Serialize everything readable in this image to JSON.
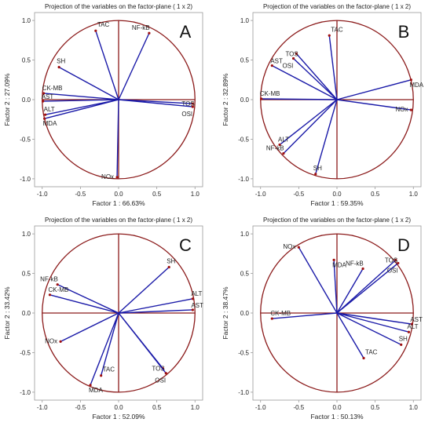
{
  "colors": {
    "circle": "#8B1A1A",
    "axes": "#8B1A1A",
    "vector": "#1a1aa8",
    "point": "#a01010",
    "frame": "#9a9a9a",
    "text": "#222222"
  },
  "chart_data": [
    {
      "type": "scatter",
      "panel_label": "A",
      "title": "Projection of the variables on the factor-plane (  1 x  2)",
      "xlabel": "Factor 1 : 66.63%",
      "ylabel": "Factor 2 : 27.09%",
      "xlim": [
        -1.1,
        1.1
      ],
      "ylim": [
        -1.1,
        1.1
      ],
      "xticks": [
        "-1.0",
        "-0.5",
        "0.0",
        "0.5",
        "1.0"
      ],
      "yticks": [
        "1.0",
        "0.5",
        "0.0",
        "-0.5",
        "-1.0"
      ],
      "points": [
        {
          "label": "TAC",
          "x": -0.3,
          "y": 0.87
        },
        {
          "label": "NF-kB",
          "x": 0.4,
          "y": 0.84
        },
        {
          "label": "SH",
          "x": -0.78,
          "y": 0.41
        },
        {
          "label": "CK-MB",
          "x": -0.98,
          "y": 0.08
        },
        {
          "label": "AST",
          "x": -0.99,
          "y": -0.02
        },
        {
          "label": "ALT",
          "x": -0.96,
          "y": -0.19
        },
        {
          "label": "MDA",
          "x": -0.97,
          "y": -0.24
        },
        {
          "label": "TOS",
          "x": 0.97,
          "y": -0.05
        },
        {
          "label": "OSI",
          "x": 0.97,
          "y": -0.09
        },
        {
          "label": "NOx",
          "x": -0.02,
          "y": -0.98
        }
      ]
    },
    {
      "type": "scatter",
      "panel_label": "B",
      "title": "Projection of the variables on the factor-plane (  1 x  2)",
      "xlabel": "Factor 1 : 59.35%",
      "ylabel": "Factor 2 : 32.89%",
      "xlim": [
        -1.1,
        1.1
      ],
      "ylim": [
        -1.1,
        1.1
      ],
      "xticks": [
        "-1.0",
        "-0.5",
        "0.0",
        "0.5",
        "1.0"
      ],
      "yticks": [
        "1.0",
        "0.5",
        "0.0",
        "-0.5",
        "-1.0"
      ],
      "points": [
        {
          "label": "TAC",
          "x": -0.1,
          "y": 0.81
        },
        {
          "label": "TOS",
          "x": -0.53,
          "y": 0.58
        },
        {
          "label": "OSI",
          "x": -0.57,
          "y": 0.52
        },
        {
          "label": "AST",
          "x": -0.85,
          "y": 0.43
        },
        {
          "label": "MDA",
          "x": 0.97,
          "y": 0.25
        },
        {
          "label": "CK-MB",
          "x": -0.99,
          "y": 0.01
        },
        {
          "label": "NOx",
          "x": 0.97,
          "y": -0.13
        },
        {
          "label": "ALT",
          "x": -0.75,
          "y": -0.57
        },
        {
          "label": "NF-kB",
          "x": -0.7,
          "y": -0.68
        },
        {
          "label": "SH",
          "x": -0.28,
          "y": -0.94
        }
      ]
    },
    {
      "type": "scatter",
      "panel_label": "C",
      "title": "Projection of the variables on the factor-plane (  1 x  2)",
      "xlabel": "Factor 1 : 52.09%",
      "ylabel": "Factor 2 : 33.42%",
      "xlim": [
        -1.1,
        1.1
      ],
      "ylim": [
        -1.1,
        1.1
      ],
      "xticks": [
        "-1.0",
        "-0.5",
        "0.0",
        "0.5",
        "1.0"
      ],
      "yticks": [
        "1.0",
        "0.5",
        "0.0",
        "-0.5",
        "-1.0"
      ],
      "points": [
        {
          "label": "SH",
          "x": 0.66,
          "y": 0.58
        },
        {
          "label": "NF-kB",
          "x": -0.8,
          "y": 0.36
        },
        {
          "label": "CK-MB",
          "x": -0.9,
          "y": 0.23
        },
        {
          "label": "ALT",
          "x": 0.97,
          "y": 0.18
        },
        {
          "label": "AST",
          "x": 0.97,
          "y": 0.04
        },
        {
          "label": "NOx",
          "x": -0.76,
          "y": -0.36
        },
        {
          "label": "TOS",
          "x": 0.58,
          "y": -0.7
        },
        {
          "label": "OSI",
          "x": 0.62,
          "y": -0.76
        },
        {
          "label": "MDA",
          "x": -0.37,
          "y": -0.91
        },
        {
          "label": "TAC",
          "x": -0.23,
          "y": -0.79
        }
      ]
    },
    {
      "type": "scatter",
      "panel_label": "D",
      "title": "Projection of the variables on the factor-plane (  1 x  2)",
      "xlabel": "Factor 1 : 50.13%",
      "ylabel": "Factor 2 : 38.47%",
      "xlim": [
        -1.1,
        1.1
      ],
      "ylim": [
        -1.1,
        1.1
      ],
      "xticks": [
        "-1.0",
        "-0.5",
        "0.0",
        "0.5",
        "1.0"
      ],
      "yticks": [
        "1.0",
        "0.5",
        "0.0",
        "-0.5",
        "-1.0"
      ],
      "points": [
        {
          "label": "NOx",
          "x": -0.5,
          "y": 0.83
        },
        {
          "label": "MDA",
          "x": -0.04,
          "y": 0.67
        },
        {
          "label": "NF-kB",
          "x": 0.34,
          "y": 0.56
        },
        {
          "label": "TOS",
          "x": 0.77,
          "y": 0.67
        },
        {
          "label": "OSI",
          "x": 0.8,
          "y": 0.63
        },
        {
          "label": "CK-MB",
          "x": -0.85,
          "y": -0.07
        },
        {
          "label": "AST",
          "x": 0.98,
          "y": -0.14
        },
        {
          "label": "ALT",
          "x": 0.94,
          "y": -0.24
        },
        {
          "label": "SH",
          "x": 0.84,
          "y": -0.4
        },
        {
          "label": "TAC",
          "x": 0.35,
          "y": -0.57
        }
      ]
    }
  ]
}
